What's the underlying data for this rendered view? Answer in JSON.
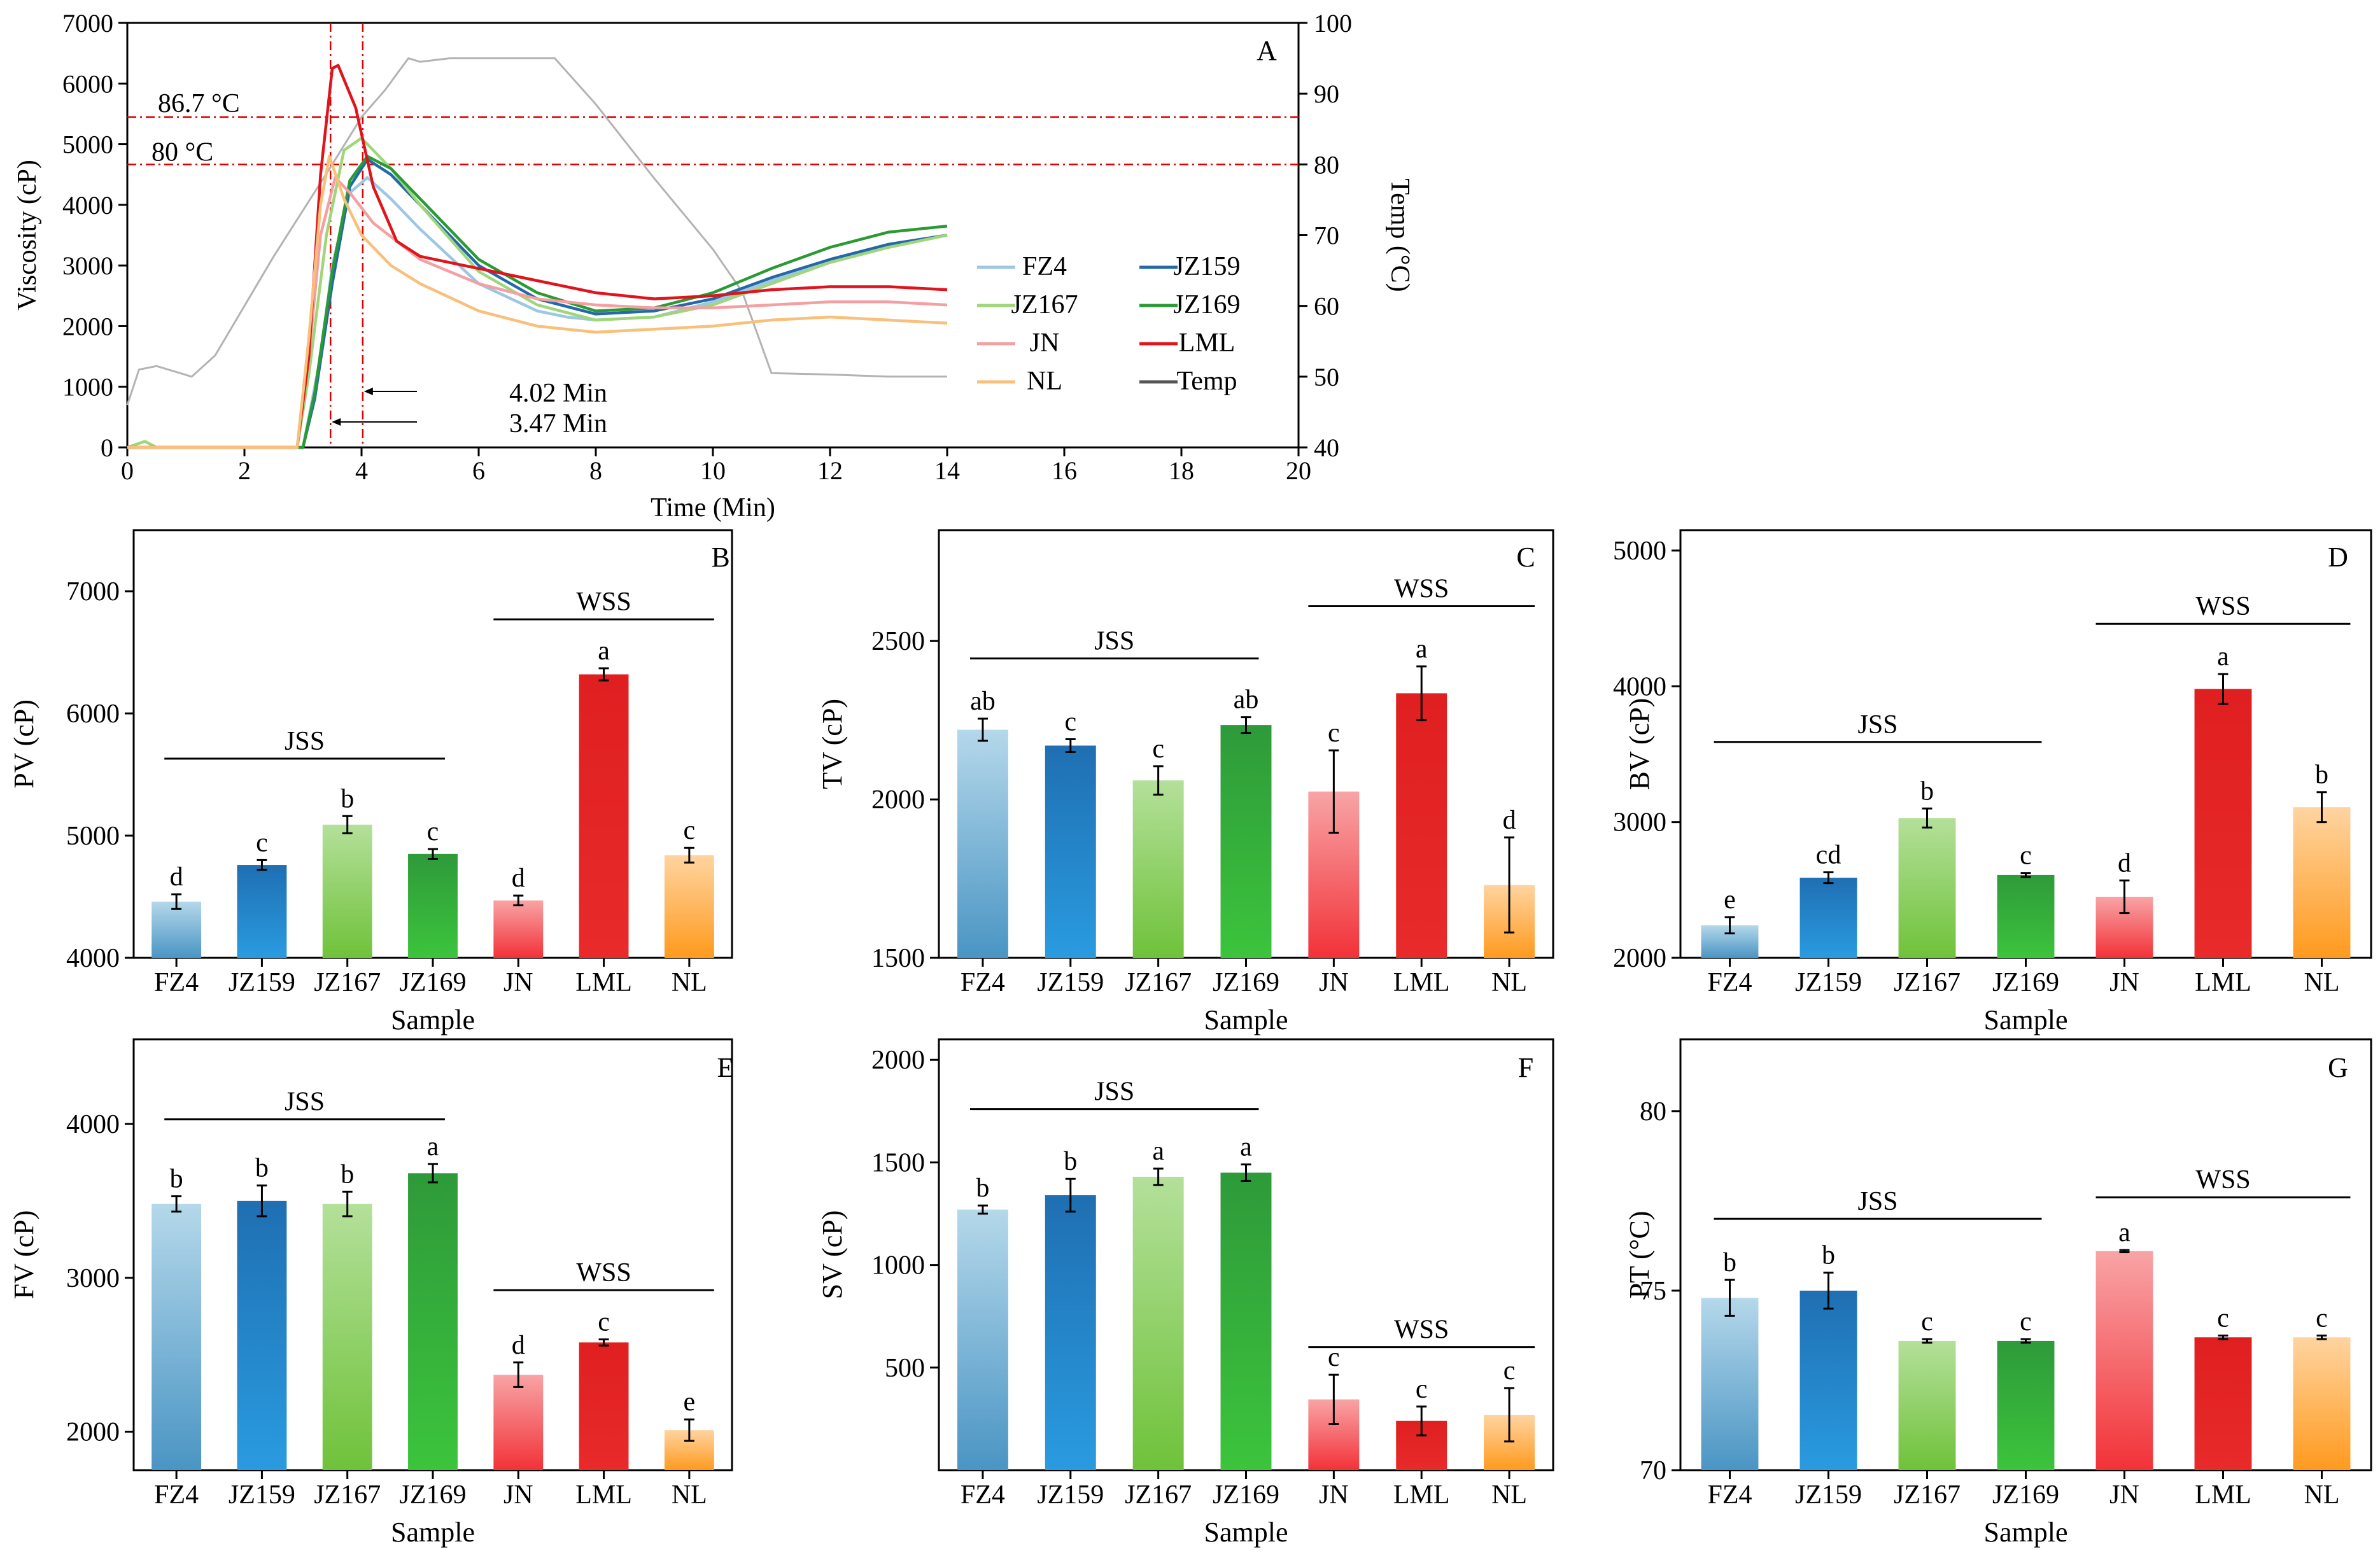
{
  "colors": {
    "FZ4": [
      "#b5d8ea",
      "#4a95c4"
    ],
    "JZ159": [
      "#1f6fb2",
      "#2a9be0"
    ],
    "JZ167": [
      "#b4e09a",
      "#6fc23a"
    ],
    "JZ169": [
      "#2e9a3a",
      "#3cc43c"
    ],
    "JN": [
      "#f8a4a6",
      "#f23238"
    ],
    "LML": [
      "#e02020",
      "#e82a2a"
    ],
    "NL": [
      "#ffd4a0",
      "#ff9a1e"
    ],
    "Temp": "#b3b3b3",
    "refline": "#e00000"
  },
  "chart_data": [
    {
      "panel": "A",
      "type": "line",
      "xlabel": "Time (Min)",
      "ylabel": "Viscosity (cP)",
      "y2label": "Temp (°C)",
      "xlim": [
        0,
        20
      ],
      "ylim": [
        0,
        7000
      ],
      "y2lim": [
        40,
        100
      ],
      "xticks": [
        0,
        2,
        4,
        6,
        8,
        10,
        12,
        14,
        16,
        18,
        20
      ],
      "yticks": [
        0,
        1000,
        2000,
        3000,
        4000,
        5000,
        6000,
        7000
      ],
      "y2ticks": [
        40,
        50,
        60,
        70,
        80,
        90,
        100
      ],
      "annotations": {
        "t1": "86.7 °C",
        "t2": "80 °C",
        "m1": "4.02 Min",
        "m2": "3.47 Min"
      },
      "ref_h_temps": [
        86.7,
        80
      ],
      "ref_v_times": [
        3.47,
        4.02
      ],
      "legend": [
        "FZ4",
        "JZ159",
        "JZ167",
        "JZ169",
        "JN",
        "LML",
        "NL",
        "Temp"
      ],
      "series": [
        {
          "name": "Temp",
          "axis": "right",
          "x": [
            0,
            0.2,
            0.5,
            1.1,
            1.5,
            2,
            2.5,
            3,
            3.5,
            4,
            4.4,
            4.8,
            5.0,
            5.5,
            6.5,
            7.3,
            8,
            9,
            10,
            10.5,
            11,
            12,
            13,
            14
          ],
          "y": [
            46,
            51,
            51.5,
            50,
            53,
            60,
            67,
            73.5,
            80,
            86.7,
            90.5,
            95,
            94.5,
            95,
            95,
            95,
            88.5,
            78,
            68,
            62,
            50.5,
            50.3,
            50,
            50
          ]
        },
        {
          "name": "FZ4",
          "axis": "left",
          "x": [
            0,
            0.3,
            0.5,
            3,
            3.3,
            3.5,
            3.8,
            4.1,
            4.5,
            5,
            6,
            7,
            7.5,
            8,
            9,
            10,
            11,
            12,
            13,
            14
          ],
          "y": [
            0,
            0,
            0,
            0,
            1500,
            3000,
            4200,
            4450,
            4100,
            3600,
            2700,
            2250,
            2150,
            2100,
            2150,
            2400,
            2750,
            3050,
            3300,
            3500
          ]
        },
        {
          "name": "JZ159",
          "axis": "left",
          "x": [
            0,
            3,
            3.2,
            3.5,
            3.8,
            4.1,
            4.5,
            5,
            6,
            7,
            8,
            9,
            10,
            11,
            12,
            13,
            14
          ],
          "y": [
            0,
            0,
            800,
            2700,
            4300,
            4750,
            4500,
            4000,
            3000,
            2450,
            2200,
            2250,
            2450,
            2800,
            3100,
            3350,
            3500
          ]
        },
        {
          "name": "JZ167",
          "axis": "left",
          "x": [
            0,
            0.3,
            0.5,
            2.9,
            3.1,
            3.4,
            3.7,
            4.0,
            4.5,
            5,
            6,
            7,
            8,
            9,
            10,
            11,
            12,
            13,
            14
          ],
          "y": [
            0,
            100,
            0,
            0,
            1200,
            3500,
            4900,
            5100,
            4600,
            4000,
            2900,
            2350,
            2100,
            2150,
            2350,
            2700,
            3050,
            3300,
            3500
          ]
        },
        {
          "name": "JZ169",
          "axis": "left",
          "x": [
            0,
            3,
            3.2,
            3.5,
            3.8,
            4.1,
            4.5,
            5,
            6,
            7,
            8,
            9,
            10,
            11,
            12,
            13,
            14
          ],
          "y": [
            0,
            0,
            900,
            2900,
            4400,
            4800,
            4600,
            4100,
            3100,
            2550,
            2250,
            2300,
            2550,
            2950,
            3300,
            3550,
            3650
          ]
        },
        {
          "name": "JN",
          "axis": "left",
          "x": [
            0,
            2.9,
            3.1,
            3.3,
            3.55,
            3.8,
            4.2,
            5,
            6,
            7,
            8,
            9,
            10,
            11,
            12,
            13,
            14
          ],
          "y": [
            0,
            0,
            1500,
            3500,
            4450,
            4200,
            3700,
            3100,
            2700,
            2450,
            2350,
            2300,
            2300,
            2350,
            2400,
            2400,
            2350
          ]
        },
        {
          "name": "LML",
          "axis": "left",
          "x": [
            0,
            2.9,
            3.1,
            3.3,
            3.5,
            3.6,
            3.9,
            4.2,
            4.6,
            5,
            6,
            7,
            8,
            9,
            10,
            11,
            12,
            13,
            14
          ],
          "y": [
            0,
            0,
            1500,
            4500,
            6250,
            6300,
            5600,
            4300,
            3400,
            3150,
            2950,
            2750,
            2550,
            2450,
            2500,
            2600,
            2650,
            2650,
            2600
          ]
        },
        {
          "name": "NL",
          "axis": "left",
          "x": [
            0,
            2.9,
            3.1,
            3.3,
            3.45,
            3.7,
            4.0,
            4.5,
            5,
            6,
            7,
            8,
            9,
            10,
            11,
            12,
            13,
            14
          ],
          "y": [
            0,
            0,
            1800,
            4000,
            4800,
            4100,
            3500,
            3000,
            2700,
            2250,
            2000,
            1900,
            1950,
            2000,
            2100,
            2150,
            2100,
            2050
          ]
        }
      ]
    },
    {
      "panel": "B",
      "type": "bar",
      "xlabel": "Sample",
      "ylabel": "PV (cP)",
      "ylim": [
        4000,
        7500
      ],
      "yticks": [
        4000,
        5000,
        6000,
        7000
      ],
      "categories": [
        "FZ4",
        "JZ159",
        "JZ167",
        "JZ169",
        "JN",
        "LML",
        "NL"
      ],
      "values": [
        4460,
        4760,
        5090,
        4850,
        4470,
        6320,
        4840
      ],
      "errors": [
        60,
        40,
        70,
        40,
        40,
        50,
        60
      ],
      "letters": [
        "d",
        "c",
        "b",
        "c",
        "d",
        "a",
        "c"
      ],
      "groups": [
        {
          "label": "JSS",
          "value": 5630
        },
        {
          "label": "WSS",
          "value": 6770
        }
      ]
    },
    {
      "panel": "C",
      "type": "bar",
      "xlabel": "Sample",
      "ylabel": "TV (cP)",
      "ylim": [
        1500,
        2850
      ],
      "yticks": [
        1500,
        2000,
        2500
      ],
      "categories": [
        "FZ4",
        "JZ159",
        "JZ167",
        "JZ169",
        "JN",
        "LML",
        "NL"
      ],
      "values": [
        2220,
        2170,
        2060,
        2235,
        2025,
        2335,
        1730
      ],
      "errors": [
        35,
        20,
        45,
        25,
        130,
        85,
        150
      ],
      "letters": [
        "ab",
        "c",
        "c",
        "ab",
        "c",
        "a",
        "d"
      ],
      "groups": [
        {
          "label": "JSS",
          "value": 2445
        },
        {
          "label": "WSS",
          "value": 2610
        }
      ]
    },
    {
      "panel": "D",
      "type": "bar",
      "xlabel": "Sample",
      "ylabel": "BV (cP)",
      "ylim": [
        2000,
        5150
      ],
      "yticks": [
        2000,
        3000,
        4000,
        5000
      ],
      "categories": [
        "FZ4",
        "JZ159",
        "JZ167",
        "JZ169",
        "JN",
        "LML",
        "NL"
      ],
      "values": [
        2240,
        2590,
        3030,
        2610,
        2450,
        3980,
        3110
      ],
      "errors": [
        60,
        40,
        70,
        15,
        120,
        110,
        110
      ],
      "letters": [
        "e",
        "cd",
        "b",
        "c",
        "d",
        "a",
        "b"
      ],
      "groups": [
        {
          "label": "JSS",
          "value": 3590
        },
        {
          "label": "WSS",
          "value": 4460
        }
      ]
    },
    {
      "panel": "E",
      "type": "bar",
      "xlabel": "Sample",
      "ylabel": "FV (cP)",
      "ylim": [
        1750,
        4550
      ],
      "yticks": [
        2000,
        3000,
        4000
      ],
      "categories": [
        "FZ4",
        "JZ159",
        "JZ167",
        "JZ169",
        "JN",
        "LML",
        "NL"
      ],
      "values": [
        3480,
        3500,
        3480,
        3680,
        2370,
        2580,
        2010
      ],
      "errors": [
        50,
        100,
        80,
        60,
        80,
        20,
        70
      ],
      "letters": [
        "b",
        "b",
        "b",
        "a",
        "d",
        "c",
        "e"
      ],
      "groups": [
        {
          "label": "JSS",
          "value": 4030
        },
        {
          "label": "WSS",
          "value": 2920
        }
      ]
    },
    {
      "panel": "F",
      "type": "bar",
      "xlabel": "Sample",
      "ylabel": "SV (cP)",
      "ylim": [
        0,
        2100
      ],
      "yticks": [
        500,
        1000,
        1500,
        2000
      ],
      "categories": [
        "FZ4",
        "JZ159",
        "JZ167",
        "JZ169",
        "JN",
        "LML",
        "NL"
      ],
      "values": [
        1270,
        1340,
        1430,
        1450,
        345,
        240,
        270
      ],
      "errors": [
        20,
        80,
        40,
        40,
        120,
        70,
        130
      ],
      "letters": [
        "b",
        "b",
        "a",
        "a",
        "c",
        "c",
        "c"
      ],
      "groups": [
        {
          "label": "JSS",
          "value": 1760
        },
        {
          "label": "WSS",
          "value": 600
        }
      ]
    },
    {
      "panel": "G",
      "type": "bar",
      "xlabel": "Sample",
      "ylabel": "PT (°C)",
      "ylim": [
        70,
        82
      ],
      "yticks": [
        70,
        75,
        80
      ],
      "categories": [
        "FZ4",
        "JZ159",
        "JZ167",
        "JZ169",
        "JN",
        "LML",
        "NL"
      ],
      "values": [
        74.8,
        75.0,
        73.6,
        73.6,
        76.1,
        73.7,
        73.7
      ],
      "errors": [
        0.5,
        0.5,
        0.05,
        0.05,
        0.03,
        0.05,
        0.05
      ],
      "letters": [
        "b",
        "b",
        "c",
        "c",
        "a",
        "c",
        "c"
      ],
      "groups": [
        {
          "label": "JSS",
          "value": 77.0
        },
        {
          "label": "WSS",
          "value": 77.6
        }
      ]
    }
  ]
}
